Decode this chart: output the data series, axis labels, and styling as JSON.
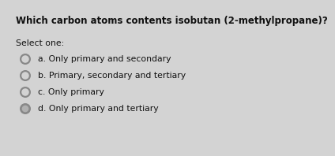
{
  "title": "Which carbon atoms contents isobutan (2-methylpropane)?",
  "select_label": "Select one:",
  "options": [
    "a. Only primary and secondary",
    "b. Primary, secondary and tertiary",
    "c. Only primary",
    "d. Only primary and tertiary"
  ],
  "background_color": "#d3d3d3",
  "title_fontsize": 8.5,
  "select_fontsize": 7.8,
  "option_fontsize": 7.8,
  "circle_edge_color": "#888888",
  "circle_face_color": "#d3d3d3",
  "text_color": "#111111"
}
